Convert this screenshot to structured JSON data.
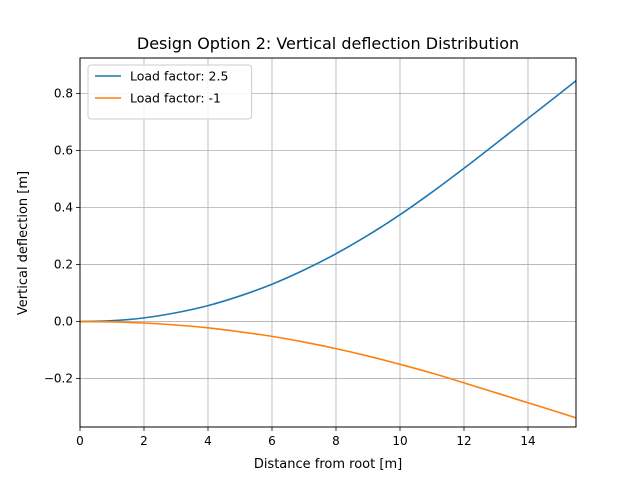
{
  "chart_data": {
    "type": "line",
    "title": "Design Option 2: Vertical deflection Distribution",
    "xlabel": "Distance from root [m]",
    "ylabel": "Vertical deflection [m]",
    "xlim": [
      0,
      15.5
    ],
    "ylim": [
      -0.37,
      0.925
    ],
    "xticks": [
      0,
      2,
      4,
      6,
      8,
      10,
      12,
      14
    ],
    "xtick_labels": [
      "0",
      "2",
      "4",
      "6",
      "8",
      "10",
      "12",
      "14"
    ],
    "yticks": [
      -0.2,
      0.0,
      0.2,
      0.4,
      0.6,
      0.8
    ],
    "ytick_labels": [
      "−0.2",
      "0.0",
      "0.2",
      "0.4",
      "0.6",
      "0.8"
    ],
    "grid": true,
    "legend_position": "upper-left",
    "series": [
      {
        "name": "Load factor: 2.5",
        "color": "#1f77b4",
        "x": [
          0,
          1,
          2,
          3,
          4,
          5,
          6,
          7,
          8,
          9,
          10,
          11,
          12,
          13,
          14,
          15,
          15.5
        ],
        "y": [
          0.0,
          0.003,
          0.013,
          0.031,
          0.056,
          0.09,
          0.131,
          0.181,
          0.238,
          0.303,
          0.375,
          0.454,
          0.538,
          0.625,
          0.713,
          0.801,
          0.845
        ]
      },
      {
        "name": "Load factor: -1",
        "color": "#ff7f0e",
        "x": [
          0,
          1,
          2,
          3,
          4,
          5,
          6,
          7,
          8,
          9,
          10,
          11,
          12,
          13,
          14,
          15,
          15.5
        ],
        "y": [
          0.0,
          -0.001,
          -0.005,
          -0.012,
          -0.022,
          -0.036,
          -0.052,
          -0.072,
          -0.095,
          -0.121,
          -0.15,
          -0.181,
          -0.215,
          -0.25,
          -0.285,
          -0.32,
          -0.338
        ]
      }
    ]
  }
}
